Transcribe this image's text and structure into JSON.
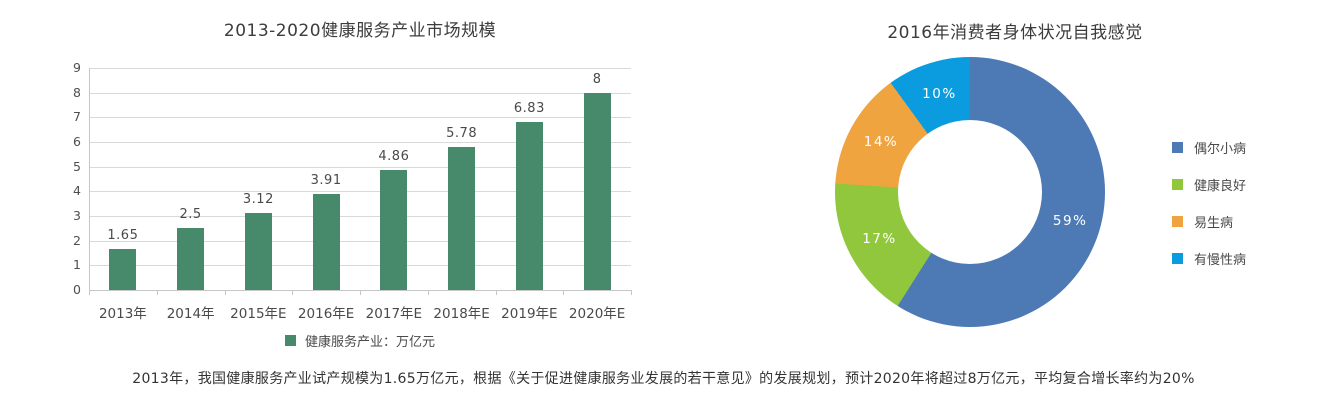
{
  "caption": "2013年，我国健康服务产业试产规模为1.65万亿元，根据《关于促进健康服务业发展的若干意见》的发展规划，预计2020年将超过8万亿元，平均复合增长率约为20%",
  "chart_data": [
    {
      "type": "bar",
      "title": "2013-2020健康服务产业市场规模",
      "series_name": "健康服务产业：万亿元",
      "categories": [
        "2013年",
        "2014年",
        "2015年E",
        "2016年E",
        "2017年E",
        "2018年E",
        "2019年E",
        "2020年E"
      ],
      "values": [
        1.65,
        2.5,
        3.12,
        3.91,
        4.86,
        5.78,
        6.83,
        8
      ],
      "value_labels": [
        "1.65",
        "2.5",
        "3.12",
        "3.91",
        "4.86",
        "5.78",
        "6.83",
        "8"
      ],
      "xlabel": "",
      "ylabel": "",
      "ylim": [
        0,
        9
      ],
      "y_ticks": [
        0,
        1,
        2,
        3,
        4,
        5,
        6,
        7,
        8,
        9
      ],
      "grid": true,
      "bar_color": "#478a6b",
      "legend_position": "bottom"
    },
    {
      "type": "pie",
      "donut": true,
      "title": "2016年消费者身体状况自我感觉",
      "labels": [
        "偶尔小病",
        "健康良好",
        "易生病",
        "有慢性病"
      ],
      "values": [
        59,
        17,
        14,
        10
      ],
      "percent_labels": [
        "59%",
        "17%",
        "14%",
        "10%"
      ],
      "colors": [
        "#4d7ab5",
        "#90c73c",
        "#f0a440",
        "#0b9ce0"
      ],
      "start_angle_deg": 0,
      "direction": "clockwise",
      "legend_position": "right"
    }
  ]
}
